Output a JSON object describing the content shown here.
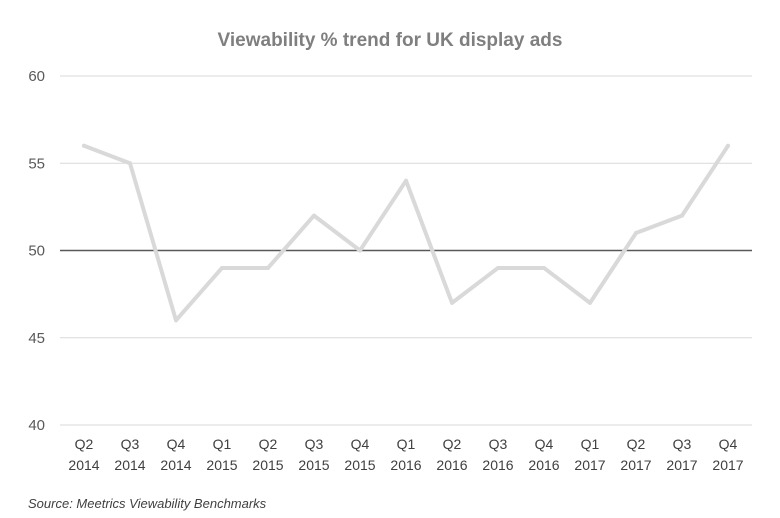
{
  "chart_data": {
    "type": "line",
    "title": "Viewability % trend for UK display ads",
    "xlabel": "",
    "ylabel": "",
    "categories": [
      [
        "Q2",
        "2014"
      ],
      [
        "Q3",
        "2014"
      ],
      [
        "Q4",
        "2014"
      ],
      [
        "Q1",
        "2015"
      ],
      [
        "Q2",
        "2015"
      ],
      [
        "Q3",
        "2015"
      ],
      [
        "Q4",
        "2015"
      ],
      [
        "Q1",
        "2016"
      ],
      [
        "Q2",
        "2016"
      ],
      [
        "Q3",
        "2016"
      ],
      [
        "Q4",
        "2016"
      ],
      [
        "Q1",
        "2017"
      ],
      [
        "Q2",
        "2017"
      ],
      [
        "Q3",
        "2017"
      ],
      [
        "Q4",
        "2017"
      ]
    ],
    "series": [
      {
        "values": [
          56,
          55,
          46,
          49,
          49,
          52,
          50,
          54,
          47,
          49,
          49,
          47,
          51,
          52,
          56
        ],
        "color": "#d9d9d9"
      }
    ],
    "ylim": [
      40,
      60
    ],
    "yticks": [
      40,
      45,
      50,
      55,
      60
    ],
    "reference_line": 50,
    "grid": true,
    "legend": "none"
  },
  "source": "Source: Meetrics Viewability Benchmarks"
}
